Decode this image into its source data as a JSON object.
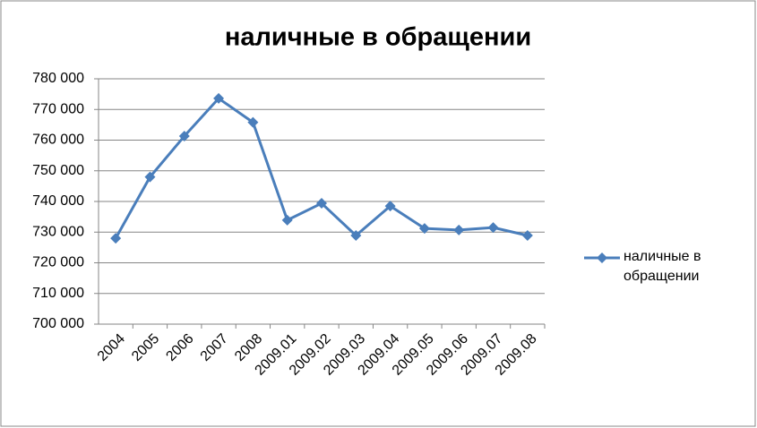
{
  "chart_data": {
    "type": "line",
    "title": "наличные в обращении",
    "categories": [
      "2004",
      "2005",
      "2006",
      "2007",
      "2008",
      "2009.01",
      "2009.02",
      "2009.03",
      "2009.04",
      "2009.05",
      "2009.06",
      "2009.07",
      "2009.08"
    ],
    "series": [
      {
        "name": "наличные в обращении",
        "color": "#4a7ebb",
        "values": [
          728000,
          748000,
          761300,
          773600,
          765800,
          733900,
          739400,
          728900,
          738500,
          731200,
          730700,
          731500,
          728900
        ]
      }
    ],
    "ylim": [
      700000,
      780000
    ],
    "yticks": [
      {
        "value": 700000,
        "label": "700 000"
      },
      {
        "value": 710000,
        "label": "710 000"
      },
      {
        "value": 720000,
        "label": "720 000"
      },
      {
        "value": 730000,
        "label": "730 000"
      },
      {
        "value": 740000,
        "label": "740 000"
      },
      {
        "value": 750000,
        "label": "750 000"
      },
      {
        "value": 760000,
        "label": "760 000"
      },
      {
        "value": 770000,
        "label": "770 000"
      },
      {
        "value": 780000,
        "label": "780 000"
      }
    ],
    "grid": true
  }
}
